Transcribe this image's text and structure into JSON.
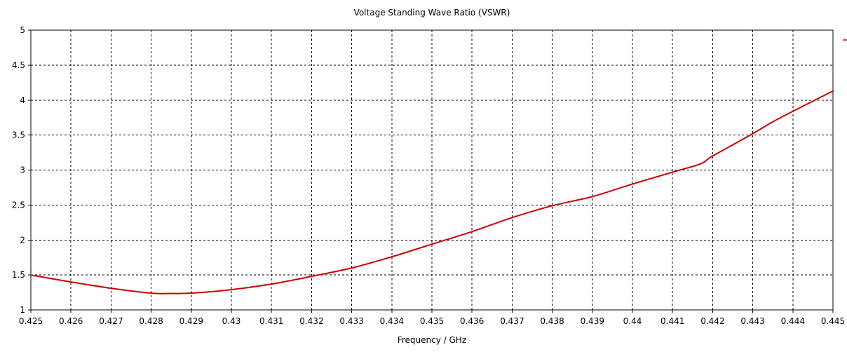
{
  "chart_data": {
    "type": "line",
    "title": "Voltage Standing Wave Ratio (VSWR)",
    "xlabel": "Frequency / GHz",
    "ylabel": "",
    "xlim": [
      0.425,
      0.445
    ],
    "ylim": [
      1,
      5
    ],
    "x_ticks": [
      0.425,
      0.426,
      0.427,
      0.428,
      0.429,
      0.43,
      0.431,
      0.432,
      0.433,
      0.434,
      0.435,
      0.436,
      0.437,
      0.438,
      0.439,
      0.44,
      0.441,
      0.442,
      0.443,
      0.444,
      0.445
    ],
    "x_tick_labels": [
      "0.425",
      "0.426",
      "0.427",
      "0.428",
      "0.429",
      "0.43",
      "0.431",
      "0.432",
      "0.433",
      "0.434",
      "0.435",
      "0.436",
      "0.437",
      "0.438",
      "0.439",
      "0.44",
      "0.441",
      "0.442",
      "0.443",
      "0.444",
      "0.445"
    ],
    "y_ticks": [
      1,
      1.5,
      2,
      2.5,
      3,
      3.5,
      4,
      4.5,
      5
    ],
    "y_tick_labels": [
      "1",
      "1.5",
      "2",
      "2.5",
      "3",
      "3.5",
      "4",
      "4.5",
      "5"
    ],
    "grid": true,
    "grid_style": "dashed",
    "legend": "top-right (marker only)",
    "series": [
      {
        "color": "#cc0000",
        "x": [
          0.425,
          0.426,
          0.427,
          0.428,
          0.4285,
          0.429,
          0.43,
          0.431,
          0.432,
          0.433,
          0.434,
          0.435,
          0.436,
          0.437,
          0.438,
          0.439,
          0.44,
          0.441,
          0.4417,
          0.442,
          0.443,
          0.4435,
          0.444,
          0.445
        ],
        "y": [
          1.5,
          1.4,
          1.31,
          1.24,
          1.235,
          1.24,
          1.29,
          1.37,
          1.48,
          1.6,
          1.76,
          1.94,
          2.12,
          2.32,
          2.49,
          2.62,
          2.8,
          2.97,
          3.09,
          3.2,
          3.52,
          3.69,
          3.84,
          4.13
        ]
      }
    ]
  }
}
